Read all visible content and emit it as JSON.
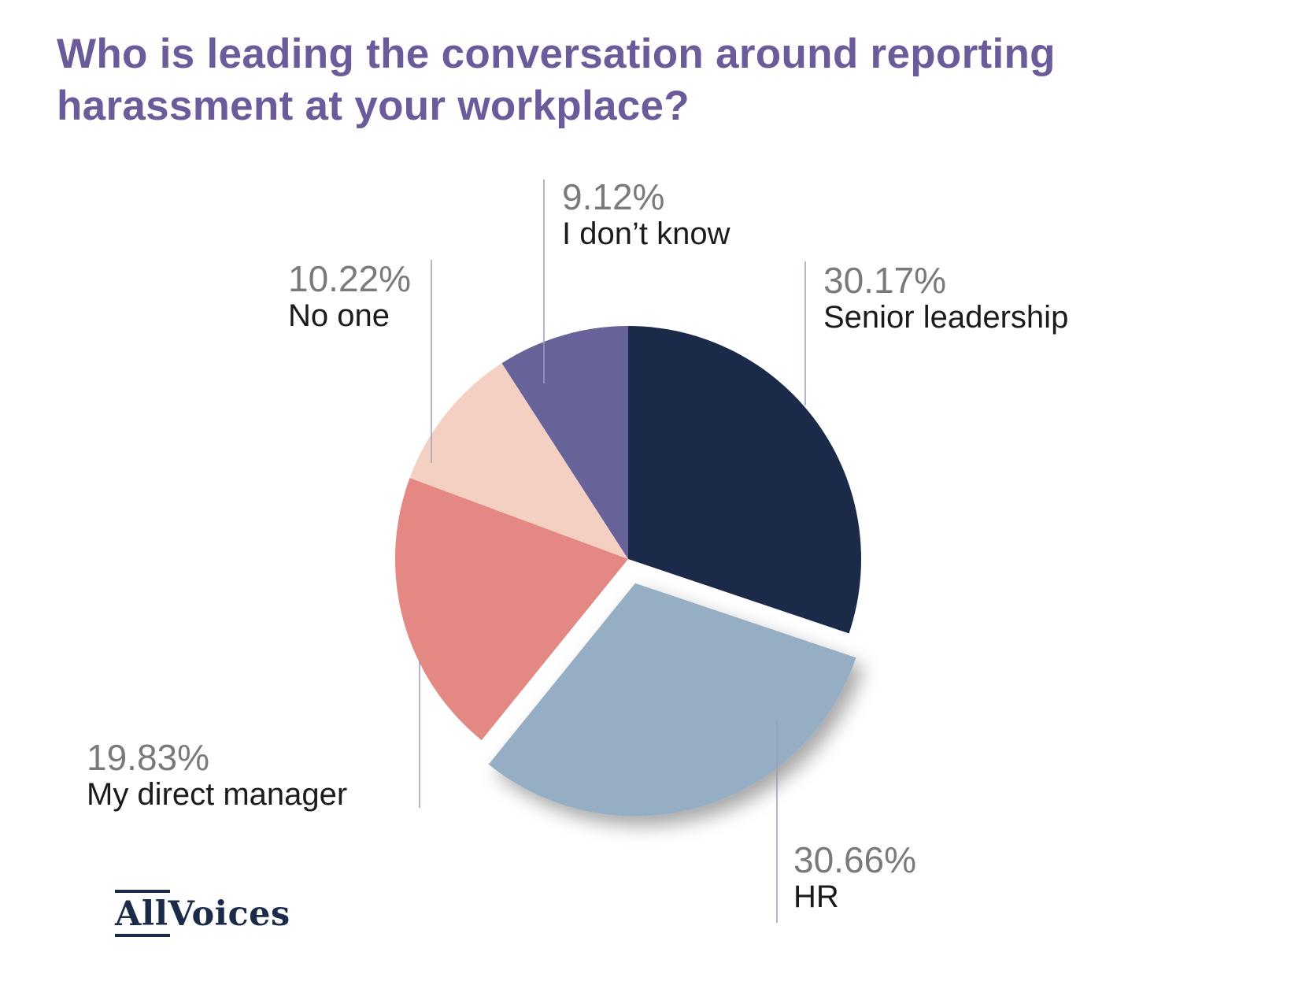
{
  "title": "Who is leading the conversation around reporting harassment at your workplace?",
  "logo_text": {
    "first": "All",
    "second": "Voices"
  },
  "chart_data": {
    "type": "pie",
    "title": "Who is leading the conversation around reporting harassment at your workplace?",
    "start_angle_deg": 0,
    "direction": "clockwise",
    "exploded_slice": "HR",
    "slices": [
      {
        "label": "Senior leadership",
        "value": 30.17,
        "value_label": "30.17%",
        "color": "#1c2a4a"
      },
      {
        "label": "HR",
        "value": 30.66,
        "value_label": "30.66%",
        "color": "#95aec4"
      },
      {
        "label": "My direct manager",
        "value": 19.83,
        "value_label": "19.83%",
        "color": "#e38882"
      },
      {
        "label": "No one",
        "value": 10.22,
        "value_label": "10.22%",
        "color": "#f4d0c3"
      },
      {
        "label": "I don’t know",
        "value": 9.12,
        "value_label": "9.12%",
        "color": "#676297"
      }
    ]
  }
}
